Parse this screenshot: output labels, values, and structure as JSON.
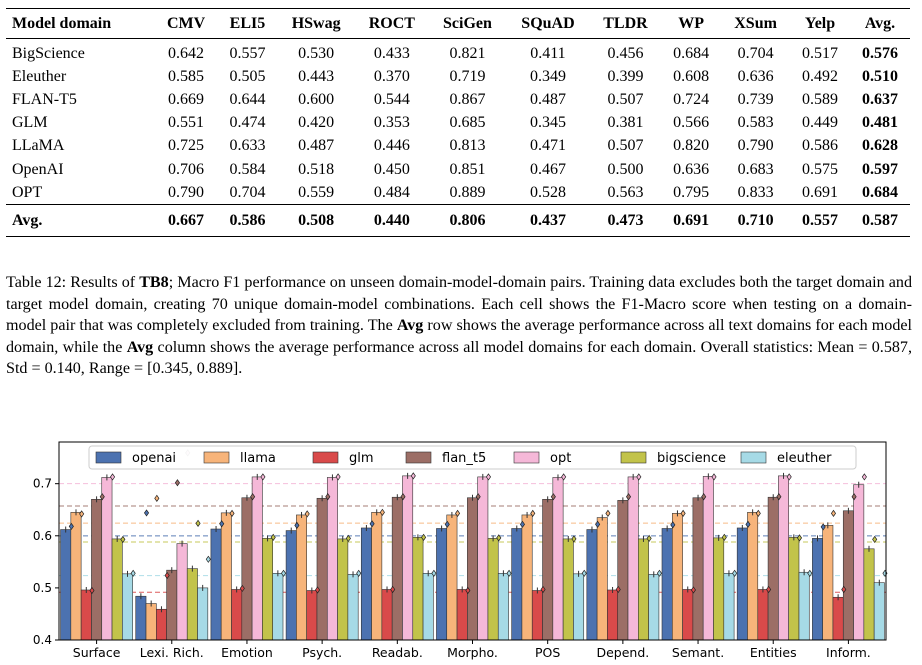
{
  "table": {
    "header": [
      "Model domain",
      "CMV",
      "ELI5",
      "HSwag",
      "ROCT",
      "SciGen",
      "SQuAD",
      "TLDR",
      "WP",
      "XSum",
      "Yelp",
      "Avg."
    ],
    "rows": [
      {
        "name": "BigScience",
        "values": [
          "0.642",
          "0.557",
          "0.530",
          "0.433",
          "0.821",
          "0.411",
          "0.456",
          "0.684",
          "0.704",
          "0.517"
        ],
        "avg": "0.576"
      },
      {
        "name": "Eleuther",
        "values": [
          "0.585",
          "0.505",
          "0.443",
          "0.370",
          "0.719",
          "0.349",
          "0.399",
          "0.608",
          "0.636",
          "0.492"
        ],
        "avg": "0.510"
      },
      {
        "name": "FLAN-T5",
        "values": [
          "0.669",
          "0.644",
          "0.600",
          "0.544",
          "0.867",
          "0.487",
          "0.507",
          "0.724",
          "0.739",
          "0.589"
        ],
        "avg": "0.637"
      },
      {
        "name": "GLM",
        "values": [
          "0.551",
          "0.474",
          "0.420",
          "0.353",
          "0.685",
          "0.345",
          "0.381",
          "0.566",
          "0.583",
          "0.449"
        ],
        "avg": "0.481"
      },
      {
        "name": "LLaMA",
        "values": [
          "0.725",
          "0.633",
          "0.487",
          "0.446",
          "0.813",
          "0.471",
          "0.507",
          "0.820",
          "0.790",
          "0.586"
        ],
        "avg": "0.628"
      },
      {
        "name": "OpenAI",
        "values": [
          "0.706",
          "0.584",
          "0.518",
          "0.450",
          "0.851",
          "0.467",
          "0.500",
          "0.636",
          "0.683",
          "0.575"
        ],
        "avg": "0.597"
      },
      {
        "name": "OPT",
        "values": [
          "0.790",
          "0.704",
          "0.559",
          "0.484",
          "0.889",
          "0.528",
          "0.563",
          "0.795",
          "0.833",
          "0.691"
        ],
        "avg": "0.684"
      }
    ],
    "avg_row": {
      "name": "Avg.",
      "values": [
        "0.667",
        "0.586",
        "0.508",
        "0.440",
        "0.806",
        "0.437",
        "0.473",
        "0.691",
        "0.710",
        "0.557"
      ],
      "avg": "0.587"
    }
  },
  "caption": {
    "p1": "Table 12: Results of ",
    "b1": "TB8",
    "p2": "; Macro F1 performance on unseen domain-model-domain pairs. Training data excludes both the target domain and target model domain, creating 70 unique domain-model combinations. Each cell shows the F1-Macro score when testing on a domain-model pair that was completely excluded from training. The ",
    "b2": "Avg",
    "p3": " row shows the average performance across all text domains for each model domain, while the ",
    "b3": "Avg",
    "p4": " column shows the average performance across all model domains for each domain. Overall statistics: Mean = 0.587, Std = 0.140, Range = [0.345, 0.889]."
  },
  "chart_data": {
    "type": "bar",
    "categories": [
      "Surface",
      "Lexi. Rich.",
      "Emotion",
      "Psych.",
      "Readab.",
      "Morpho.",
      "POS",
      "Depend.",
      "Semant.",
      "Entities",
      "Inform."
    ],
    "ylim": [
      0.4,
      0.78
    ],
    "yticks": [
      "0.4",
      "0.5",
      "0.6",
      "0.7"
    ],
    "legend_position": "top",
    "series": [
      {
        "name": "openai",
        "color": "#4c72b0",
        "values": [
          0.612,
          0.484,
          0.613,
          0.61,
          0.615,
          0.614,
          0.614,
          0.612,
          0.614,
          0.615,
          0.595
        ],
        "markers": [
          0.618,
          0.617,
          0.623,
          0.62,
          0.623,
          0.622,
          0.622,
          0.622,
          0.621,
          0.622,
          0.617
        ]
      },
      {
        "name": "llama",
        "color": "#f7b47a",
        "values": [
          0.645,
          0.47,
          0.644,
          0.64,
          0.645,
          0.64,
          0.64,
          0.635,
          0.643,
          0.645,
          0.62
        ],
        "markers": [
          0.642,
          0.645,
          0.643,
          0.642,
          0.645,
          0.643,
          0.643,
          0.643,
          0.643,
          0.643,
          0.643
        ]
      },
      {
        "name": "glm",
        "color": "#d94a4a",
        "values": [
          0.496,
          0.459,
          0.497,
          0.495,
          0.497,
          0.497,
          0.495,
          0.496,
          0.497,
          0.497,
          0.482
        ],
        "markers": [
          0.495,
          0.497,
          0.499,
          0.496,
          0.497,
          0.495,
          0.497,
          0.497,
          0.496,
          0.497,
          0.497
        ]
      },
      {
        "name": "flan_t5",
        "color": "#9c6e66",
        "values": [
          0.67,
          0.534,
          0.673,
          0.672,
          0.674,
          0.673,
          0.67,
          0.668,
          0.673,
          0.674,
          0.648
        ],
        "markers": [
          0.675,
          0.675,
          0.675,
          0.675,
          0.675,
          0.675,
          0.675,
          0.675,
          0.675,
          0.675,
          0.675
        ]
      },
      {
        "name": "opt",
        "color": "#f5b8d8",
        "values": [
          0.712,
          0.585,
          0.713,
          0.712,
          0.715,
          0.713,
          0.712,
          0.713,
          0.714,
          0.715,
          0.698
        ],
        "markers": [
          0.713,
          0.713,
          0.713,
          0.713,
          0.715,
          0.713,
          0.713,
          0.713,
          0.713,
          0.713,
          0.713
        ]
      },
      {
        "name": "bigscience",
        "color": "#c2c34a",
        "values": [
          0.594,
          0.537,
          0.595,
          0.594,
          0.597,
          0.595,
          0.594,
          0.594,
          0.596,
          0.597,
          0.575
        ],
        "markers": [
          0.593,
          0.597,
          0.597,
          0.595,
          0.597,
          0.596,
          0.594,
          0.595,
          0.597,
          0.596,
          0.593
        ]
      },
      {
        "name": "eleuther",
        "color": "#a6dae6",
        "values": [
          0.527,
          0.5,
          0.528,
          0.526,
          0.528,
          0.528,
          0.527,
          0.526,
          0.528,
          0.53,
          0.51
        ],
        "markers": [
          0.528,
          0.528,
          0.528,
          0.528,
          0.528,
          0.528,
          0.528,
          0.528,
          0.528,
          0.528,
          0.528
        ]
      }
    ]
  }
}
